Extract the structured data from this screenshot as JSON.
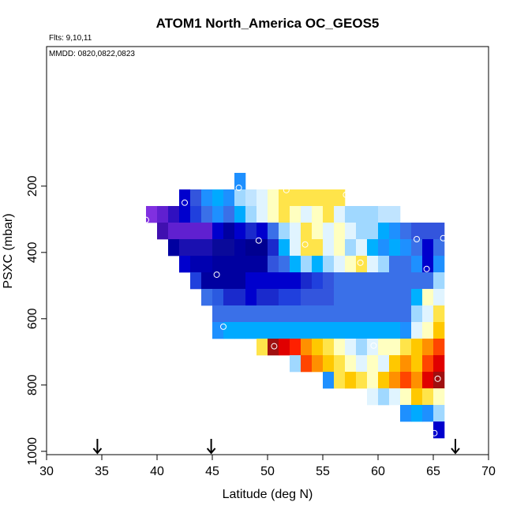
{
  "chart_data": {
    "type": "heatmap",
    "title": "ATOM1 North_America OC_GEOS5",
    "subtitle": "Flts: 9,10,11",
    "annotation": "MMDD: 0820,0822,0823",
    "xlabel": "Latitude (deg N)",
    "ylabel": "PSXC (mbar)",
    "xlim": [
      30,
      70
    ],
    "xticks": [
      30,
      35,
      40,
      45,
      50,
      55,
      60,
      65,
      70
    ],
    "ylim": [
      1010,
      -221
    ],
    "yticks": [
      200,
      400,
      600,
      800,
      1000
    ],
    "cell_size": [
      1,
      50
    ],
    "rows": [
      {
        "p": 185,
        "lat_start": 47,
        "colors": [
          "#1e90ff"
        ]
      },
      {
        "p": 235,
        "lat_start": 42,
        "colors": [
          "#0000cd",
          "#3355dd",
          "#1e90ff",
          "#00aaff",
          "#1e90ff",
          "#a0d8ff",
          "#c0e4ff",
          "#e0f4ff",
          "#ffffc0",
          "#ffe44a",
          "#ffe44a",
          "#ffe44a",
          "#ffe44a",
          "#ffe44a",
          "#ffe44a"
        ]
      },
      {
        "p": 285,
        "lat_start": 39,
        "colors": [
          "#8030e0",
          "#6020d0",
          "#3010c0",
          "#0000cd",
          "#2040dd",
          "#3a70e8",
          "#1e90ff",
          "#3a70e8",
          "#00aaff",
          "#a0d8ff",
          "#e0f4ff",
          "#ffffc0",
          "#ffe44a",
          "#ffffc0",
          "#e0f4ff",
          "#ffffc0",
          "#ffe44a",
          "#e0f4ff",
          "#a0d8ff",
          "#a0d8ff",
          "#a0d8ff",
          "#c0e4ff",
          "#c0e4ff"
        ]
      },
      {
        "p": 335,
        "lat_start": 40,
        "colors": [
          "#4010b0",
          "#6020d0",
          "#6020d0",
          "#6020d0",
          "#6020d0",
          "#0000cd",
          "#0000a0",
          "#0000cd",
          "#1a2acc",
          "#0000cd",
          "#3a70e8",
          "#a0d8ff",
          "#e0f4ff",
          "#ffe44a",
          "#ffffc0",
          "#e0f4ff",
          "#ffffc0",
          "#e0f4ff",
          "#a0d8ff",
          "#a0d8ff",
          "#00aaff",
          "#1e90ff",
          "#3a70e8",
          "#3355dd",
          "#3355dd",
          "#3355dd"
        ]
      },
      {
        "p": 385,
        "lat_start": 41,
        "colors": [
          "#0000a0",
          "#1a10b0",
          "#1a10b0",
          "#1a10b0",
          "#0a0a9a",
          "#0a0a9a",
          "#0000a0",
          "#000090",
          "#000090",
          "#1a2acc",
          "#00b0ff",
          "#e0f4ff",
          "#ffe44a",
          "#ffe44a",
          "#e0f4ff",
          "#ffffc0",
          "#a0d8ff",
          "#e0f4ff",
          "#00b0ff",
          "#1e90ff",
          "#00aaff",
          "#1e90ff",
          "#3a70e8",
          "#0000cd",
          "#3a70e8"
        ]
      },
      {
        "p": 435,
        "lat_start": 42,
        "colors": [
          "#0000cd",
          "#0000b0",
          "#0000b0",
          "#0000a0",
          "#0000a0",
          "#0000a0",
          "#0000a0",
          "#0000a0",
          "#3355dd",
          "#3a70e8",
          "#00b0ff",
          "#a0d8ff",
          "#00b0ff",
          "#a0d8ff",
          "#e0f4ff",
          "#ffffc0",
          "#ffe44a",
          "#e0f4ff",
          "#a0d8ff",
          "#3a70e8",
          "#3a70e8",
          "#1e90ff",
          "#0000cd",
          "#1e90ff"
        ]
      },
      {
        "p": 485,
        "lat_start": 43,
        "colors": [
          "#2040dd",
          "#0000a0",
          "#0000a0",
          "#0000a0",
          "#0000a0",
          "#0000cd",
          "#0000cd",
          "#0000cd",
          "#0000cd",
          "#0000cd",
          "#1a2acc",
          "#2040dd",
          "#3355dd",
          "#3a70e8",
          "#3a70e8",
          "#3a70e8",
          "#3a70e8",
          "#3a70e8",
          "#3a70e8",
          "#3a70e8",
          "#3a70e8",
          "#3a70e8",
          "#a0d8ff"
        ]
      },
      {
        "p": 535,
        "lat_start": 44,
        "colors": [
          "#3a70e8",
          "#2a5ae0",
          "#1a2acc",
          "#1a2acc",
          "#0000cd",
          "#1a2acc",
          "#1a2acc",
          "#2040dd",
          "#2040dd",
          "#3355dd",
          "#3355dd",
          "#3355dd",
          "#3a70e8",
          "#3a70e8",
          "#3a70e8",
          "#3a70e8",
          "#3a70e8",
          "#3a70e8",
          "#3a70e8",
          "#00b0ff",
          "#ffffc0",
          "#e0f4ff"
        ]
      },
      {
        "p": 585,
        "lat_start": 45,
        "colors": [
          "#3a70e8",
          "#3a70e8",
          "#3a70e8",
          "#3a70e8",
          "#3a70e8",
          "#3a70e8",
          "#3a70e8",
          "#3a70e8",
          "#3a70e8",
          "#3a70e8",
          "#3a70e8",
          "#3a70e8",
          "#3a70e8",
          "#3a70e8",
          "#3a70e8",
          "#3a70e8",
          "#3a70e8",
          "#3a70e8",
          "#a0d8ff",
          "#e0f4ff",
          "#ffe44a"
        ]
      },
      {
        "p": 635,
        "lat_start": 45,
        "colors": [
          "#1e90ff",
          "#00aaff",
          "#00aaff",
          "#00aaff",
          "#00aaff",
          "#00aaff",
          "#00aaff",
          "#00aaff",
          "#00aaff",
          "#00aaff",
          "#00aaff",
          "#00aaff",
          "#00aaff",
          "#00aaff",
          "#00aaff",
          "#00aaff",
          "#00aaff",
          "#1e90ff",
          "#e0f4ff",
          "#ffffc0",
          "#ffc800"
        ]
      },
      {
        "p": 685,
        "lat_start": 49,
        "colors": [
          "#ffe44a",
          "#a01010",
          "#e00000",
          "#ff2000",
          "#ff9000",
          "#ffc800",
          "#ffe44a",
          "#ffffc0",
          "#e0f4ff",
          "#a0d8ff",
          "#e0f4ff",
          "#ffffc0",
          "#ffffc0",
          "#ffe44a",
          "#ffc800",
          "#ff9000",
          "#ff4500"
        ]
      },
      {
        "p": 735,
        "lat_start": 52,
        "colors": [
          "#a0d8ff",
          "#ff4500",
          "#ff9000",
          "#ffc800",
          "#ffe44a",
          "#ffffc0",
          "#e0f4ff",
          "#ffffc0",
          "#e0f4ff",
          "#ffc800",
          "#ff9000",
          "#ffc800",
          "#ff4500",
          "#e00000"
        ]
      },
      {
        "p": 785,
        "lat_start": 55,
        "colors": [
          "#1e90ff",
          "#ffe44a",
          "#ffc800",
          "#ffe44a",
          "#ffffc0",
          "#ffc800",
          "#ff9000",
          "#ff4500",
          "#ff9000",
          "#e00000",
          "#a01010"
        ]
      },
      {
        "p": 835,
        "lat_start": 59,
        "colors": [
          "#e0f4ff",
          "#a0d8ff",
          "#e0f4ff",
          "#ffffc0",
          "#ffc800",
          "#ffe44a",
          "#ffffc0"
        ]
      },
      {
        "p": 885,
        "lat_start": 62,
        "colors": [
          "#1e90ff",
          "#00aaff",
          "#1e90ff",
          "#a0d8ff"
        ]
      },
      {
        "p": 935,
        "lat_start": 65,
        "colors": [
          "#0000cd"
        ]
      }
    ],
    "points": {
      "x": [
        47.4,
        42.5,
        39.0,
        49.2,
        53.4,
        45.4,
        46.0,
        50.6,
        59.6,
        58.4,
        63.5,
        65.9,
        64.4,
        65.4,
        65.1,
        51.7,
        57.1
      ],
      "y": [
        205,
        250,
        302,
        364,
        376,
        467,
        624,
        683,
        681,
        431,
        360,
        357,
        450,
        781,
        945,
        212,
        226
      ]
    },
    "markers": [
      34.6,
      44.9,
      67.0
    ]
  }
}
